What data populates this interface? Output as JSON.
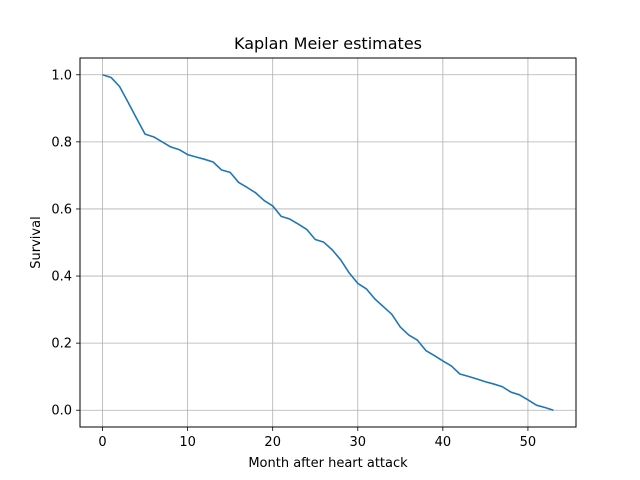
{
  "chart_data": {
    "type": "line",
    "title": "Kaplan Meier estimates",
    "xlabel": "Month after heart attack",
    "ylabel": "Survival",
    "xlim": [
      -2.65,
      55.65
    ],
    "ylim": [
      -0.05,
      1.05
    ],
    "xticks": [
      0,
      10,
      20,
      30,
      40,
      50
    ],
    "xtick_labels": [
      "0",
      "10",
      "20",
      "30",
      "40",
      "50"
    ],
    "yticks": [
      0.0,
      0.2,
      0.4,
      0.6,
      0.8,
      1.0
    ],
    "ytick_labels": [
      "0.0",
      "0.2",
      "0.4",
      "0.6",
      "0.8",
      "1.0"
    ],
    "grid": true,
    "color": "#1f77b4",
    "series": [
      {
        "x": [
          0,
          1,
          2,
          3,
          4,
          5,
          6,
          7,
          8,
          9,
          10,
          11,
          12,
          13,
          14,
          15,
          16,
          17,
          18,
          19,
          20,
          21,
          22,
          23,
          24,
          25,
          26,
          27,
          28,
          29,
          30,
          31,
          32,
          33,
          34,
          35,
          36,
          37,
          38,
          39,
          40,
          41,
          42,
          43,
          44,
          45,
          46,
          47,
          48,
          49,
          50,
          51,
          52,
          53
        ],
        "y": [
          1.0,
          0.992,
          0.965,
          0.918,
          0.87,
          0.823,
          0.815,
          0.8,
          0.785,
          0.777,
          0.762,
          0.755,
          0.748,
          0.74,
          0.716,
          0.709,
          0.679,
          0.664,
          0.648,
          0.625,
          0.609,
          0.578,
          0.57,
          0.555,
          0.539,
          0.509,
          0.501,
          0.478,
          0.448,
          0.409,
          0.378,
          0.362,
          0.332,
          0.309,
          0.286,
          0.248,
          0.224,
          0.209,
          0.178,
          0.163,
          0.147,
          0.132,
          0.108,
          0.101,
          0.093,
          0.085,
          0.078,
          0.07,
          0.054,
          0.046,
          0.031,
          0.015,
          0.008,
          0.0
        ]
      }
    ]
  }
}
